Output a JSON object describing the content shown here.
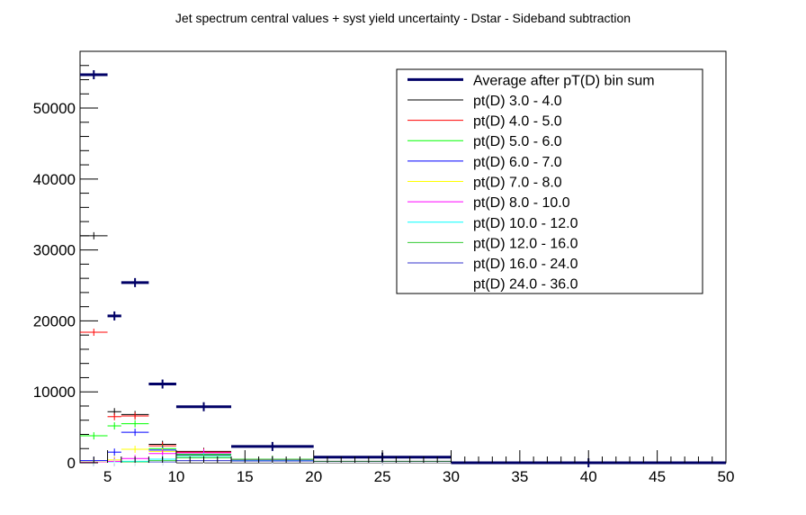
{
  "chart_data": {
    "type": "line",
    "title": "Jet spectrum central values + syst yield uncertainty - Dstar - Sideband subtraction",
    "xlabel": "",
    "ylabel": "",
    "xlim": [
      3,
      50
    ],
    "ylim": [
      0,
      58000
    ],
    "x_ticks": [
      5,
      10,
      15,
      20,
      25,
      30,
      35,
      40,
      45,
      50
    ],
    "y_ticks": [
      0,
      10000,
      20000,
      30000,
      40000,
      50000
    ],
    "grid": false,
    "legend_position": "top-right",
    "bins": [
      [
        3,
        5
      ],
      [
        5,
        6
      ],
      [
        6,
        8
      ],
      [
        8,
        10
      ],
      [
        10,
        14
      ],
      [
        14,
        20
      ],
      [
        20,
        30
      ],
      [
        30,
        50
      ]
    ],
    "series": [
      {
        "name": "Average after pT(D) bin sum",
        "color": "#000066",
        "values": [
          54700,
          20700,
          25400,
          11100,
          7900,
          2300,
          800,
          0
        ]
      },
      {
        "name": "pt(D) 3.0 - 4.0",
        "color": "#000000",
        "values": [
          32000,
          7200,
          6800,
          2600,
          1600,
          500,
          200,
          0
        ]
      },
      {
        "name": "pt(D) 4.0 - 5.0",
        "color": "#ff0000",
        "values": [
          18400,
          6500,
          6600,
          2400,
          1500,
          450,
          150,
          0
        ]
      },
      {
        "name": "pt(D) 5.0 - 6.0",
        "color": "#00ff00",
        "values": [
          3800,
          5200,
          5500,
          2000,
          1200,
          400,
          150,
          0
        ]
      },
      {
        "name": "pt(D) 6.0 - 7.0",
        "color": "#0000ff",
        "values": [
          300,
          1500,
          4300,
          1800,
          1100,
          380,
          120,
          0
        ]
      },
      {
        "name": "pt(D) 7.0 - 8.0",
        "color": "#ffff00",
        "values": [
          100,
          400,
          1900,
          1600,
          1000,
          350,
          100,
          0
        ]
      },
      {
        "name": "pt(D) 8.0 - 10.0",
        "color": "#ff00ff",
        "values": [
          50,
          200,
          600,
          1300,
          1400,
          330,
          100,
          0
        ]
      },
      {
        "name": "pt(D) 10.0 - 12.0",
        "color": "#00ffff",
        "values": [
          0,
          50,
          200,
          500,
          900,
          300,
          90,
          0
        ]
      },
      {
        "name": "pt(D) 12.0 - 16.0",
        "color": "#33cc33",
        "values": [
          0,
          0,
          100,
          300,
          700,
          500,
          150,
          0
        ]
      },
      {
        "name": "pt(D) 16.0 - 24.0",
        "color": "#3333cc",
        "values": [
          0,
          0,
          0,
          100,
          300,
          250,
          100,
          0
        ]
      },
      {
        "name": "pt(D) 24.0 - 36.0",
        "color": "#ffffff",
        "values": [
          0,
          0,
          0,
          0,
          100,
          80,
          40,
          0
        ]
      }
    ]
  }
}
